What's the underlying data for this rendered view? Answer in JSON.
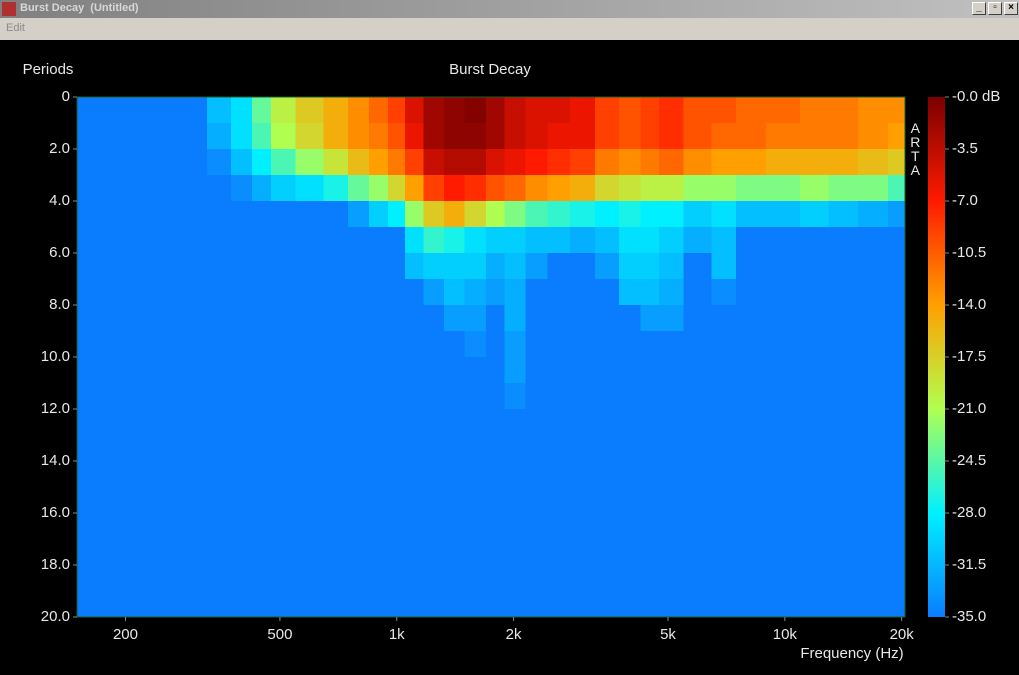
{
  "window": {
    "title": "Burst Decay  (Untitled)",
    "menu": [
      "Edit"
    ]
  },
  "chart_data": {
    "type": "heatmap",
    "title": "Burst Decay",
    "y_label": "Periods",
    "x_label": "Frequency (Hz)",
    "watermark": "ARTA",
    "x": [
      200,
      250,
      300,
      350,
      400,
      450,
      500,
      600,
      700,
      800,
      900,
      1000,
      1100,
      1250,
      1400,
      1600,
      1800,
      2000,
      2300,
      2600,
      3000,
      3500,
      4000,
      4500,
      5000,
      6000,
      7000,
      8000,
      10000,
      12000,
      14000,
      17000,
      20000
    ],
    "y": [
      0,
      1,
      2,
      3,
      4,
      5,
      6,
      7,
      8,
      9,
      10,
      11,
      12
    ],
    "z": [
      [
        -35,
        -35,
        -35,
        -35,
        -35,
        -35,
        -35,
        -35,
        -35,
        -35,
        -35,
        -35,
        -35
      ],
      [
        -35,
        -35,
        -35,
        -35,
        -35,
        -35,
        -35,
        -35,
        -35,
        -35,
        -35,
        -35,
        -35
      ],
      [
        -35,
        -35,
        -35,
        -35,
        -35,
        -35,
        -35,
        -35,
        -35,
        -35,
        -35,
        -35,
        -35
      ],
      [
        -31,
        -32,
        -34,
        -35,
        -35,
        -35,
        -35,
        -35,
        -35,
        -35,
        -35,
        -35,
        -35
      ],
      [
        -29,
        -29,
        -31,
        -34,
        -35,
        -35,
        -35,
        -35,
        -35,
        -35,
        -35,
        -35,
        -35
      ],
      [
        -24,
        -25,
        -28,
        -32,
        -35,
        -35,
        -35,
        -35,
        -35,
        -35,
        -35,
        -35,
        -35
      ],
      [
        -20,
        -21,
        -25,
        -30,
        -35,
        -35,
        -35,
        -35,
        -35,
        -35,
        -35,
        -35,
        -35
      ],
      [
        -17,
        -18,
        -22,
        -29,
        -35,
        -35,
        -35,
        -35,
        -35,
        -35,
        -35,
        -35,
        -35
      ],
      [
        -15,
        -15,
        -19,
        -27,
        -35,
        -35,
        -35,
        -35,
        -35,
        -35,
        -35,
        -35,
        -35
      ],
      [
        -13,
        -13,
        -16,
        -24,
        -33,
        -35,
        -35,
        -35,
        -35,
        -35,
        -35,
        -35,
        -35
      ],
      [
        -11,
        -12,
        -14,
        -22,
        -30,
        -35,
        -35,
        -35,
        -35,
        -35,
        -35,
        -35,
        -35
      ],
      [
        -9,
        -10,
        -12,
        -18,
        -28,
        -35,
        -35,
        -35,
        -35,
        -35,
        -35,
        -35,
        -35
      ],
      [
        -5,
        -6,
        -9,
        -14,
        -22,
        -29,
        -31,
        -35,
        -35,
        -35,
        -35,
        -35,
        -35
      ],
      [
        -2,
        -2,
        -4,
        -9,
        -17,
        -26,
        -30,
        -33,
        -35,
        -35,
        -35,
        -35,
        -35
      ],
      [
        -1,
        -1,
        -3,
        -7,
        -15,
        -27,
        -30,
        -31,
        -33,
        -35,
        -35,
        -35,
        -35
      ],
      [
        -0.5,
        -1,
        -3,
        -8,
        -18,
        -29,
        -30,
        -32,
        -33,
        -34,
        -35,
        -35,
        -35
      ],
      [
        -2,
        -2,
        -5,
        -10,
        -21,
        -30,
        -32,
        -33,
        -35,
        -35,
        -35,
        -35,
        -35
      ],
      [
        -4,
        -4,
        -6,
        -11,
        -23,
        -30,
        -31,
        -32,
        -32,
        -33,
        -33,
        -34,
        -35
      ],
      [
        -5,
        -5,
        -7,
        -13,
        -25,
        -31,
        -33,
        -35,
        -35,
        -35,
        -35,
        -35,
        -35
      ],
      [
        -5,
        -6,
        -8,
        -14,
        -26,
        -31,
        -35,
        -35,
        -35,
        -35,
        -35,
        -35,
        -35
      ],
      [
        -6,
        -6,
        -9,
        -15,
        -27,
        -32,
        -35,
        -35,
        -35,
        -35,
        -35,
        -35,
        -35
      ],
      [
        -9,
        -9,
        -12,
        -18,
        -28,
        -31,
        -33,
        -35,
        -35,
        -35,
        -35,
        -35,
        -35
      ],
      [
        -10,
        -10,
        -13,
        -19,
        -27,
        -29,
        -30,
        -31,
        -35,
        -35,
        -35,
        -35,
        -35
      ],
      [
        -9,
        -9,
        -12,
        -20,
        -28,
        -29,
        -30,
        -31,
        -33,
        -35,
        -35,
        -35,
        -35
      ],
      [
        -8,
        -8,
        -11,
        -20,
        -28,
        -30,
        -31,
        -32,
        -33,
        -35,
        -35,
        -35,
        -35
      ],
      [
        -10,
        -10,
        -13,
        -22,
        -30,
        -32,
        -35,
        -35,
        -35,
        -35,
        -35,
        -35,
        -35
      ],
      [
        -10,
        -11,
        -14,
        -22,
        -29,
        -31,
        -31,
        -34,
        -35,
        -35,
        -35,
        -35,
        -35
      ],
      [
        -11,
        -11,
        -14,
        -23,
        -31,
        -35,
        -35,
        -35,
        -35,
        -35,
        -35,
        -35,
        -35
      ],
      [
        -11,
        -12,
        -15,
        -23,
        -31,
        -35,
        -35,
        -35,
        -35,
        -35,
        -35,
        -35,
        -35
      ],
      [
        -12,
        -12,
        -15,
        -22,
        -30,
        -35,
        -35,
        -35,
        -35,
        -35,
        -35,
        -35,
        -35
      ],
      [
        -12,
        -12,
        -15,
        -23,
        -31,
        -35,
        -35,
        -35,
        -35,
        -35,
        -35,
        -35,
        -35
      ],
      [
        -13,
        -13,
        -16,
        -23,
        -32,
        -35,
        -35,
        -35,
        -35,
        -35,
        -35,
        -35,
        -35
      ],
      [
        -13,
        -14,
        -17,
        -25,
        -33,
        -35,
        -35,
        -35,
        -35,
        -35,
        -35,
        -35,
        -35
      ]
    ],
    "xlim": [
      150,
      20400
    ],
    "x_log": true,
    "xticks": [
      200,
      500,
      {
        "value": 1000,
        "label": "1k"
      },
      {
        "value": 2000,
        "label": "2k"
      },
      {
        "value": 5000,
        "label": "5k"
      },
      {
        "value": 10000,
        "label": "10k"
      },
      {
        "value": 20000,
        "label": "20k"
      }
    ],
    "ylim": [
      0,
      20
    ],
    "y_inverted": true,
    "yticks": [
      0,
      {
        "value": 2,
        "label": "2.0"
      },
      {
        "value": 4,
        "label": "4.0"
      },
      {
        "value": 6,
        "label": "6.0"
      },
      {
        "value": 8,
        "label": "8.0"
      },
      {
        "value": 10,
        "label": "10.0"
      },
      {
        "value": 12,
        "label": "12.0"
      },
      {
        "value": 14,
        "label": "14.0"
      },
      {
        "value": 16,
        "label": "16.0"
      },
      {
        "value": 18,
        "label": "18.0"
      },
      {
        "value": 20,
        "label": "20.0"
      }
    ],
    "zlim": [
      -35,
      0
    ],
    "zticks": [
      {
        "value": 0,
        "label": "-0.0 dB"
      },
      -3.5,
      {
        "value": -7,
        "label": "-7.0"
      },
      -10.5,
      {
        "value": -14,
        "label": "-14.0"
      },
      -17.5,
      {
        "value": -21,
        "label": "-21.0"
      },
      -24.5,
      {
        "value": -28,
        "label": "-28.0"
      },
      -31.5,
      {
        "value": -35,
        "label": "-35.0"
      }
    ],
    "colormap": [
      "#0a7dff",
      "#00f0ff",
      "#b0ff50",
      "#ffa000",
      "#ff1a00",
      "#7a0000"
    ]
  }
}
